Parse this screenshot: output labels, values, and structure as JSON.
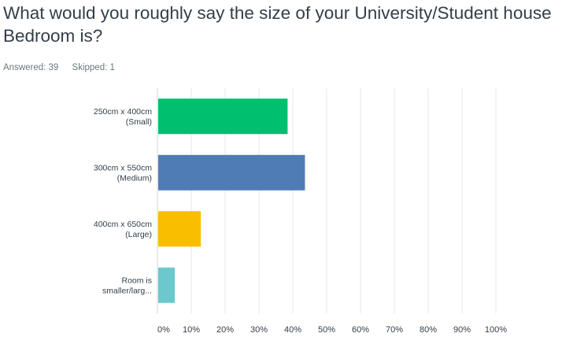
{
  "question": {
    "title": "What would you roughly say the size of your University/Student house Bedroom is?"
  },
  "stats": {
    "answered": "Answered: 39",
    "skipped": "Skipped: 1"
  },
  "chart_data": {
    "type": "bar",
    "orientation": "horizontal",
    "categories": [
      [
        "250cm x 400cm",
        "(Small)"
      ],
      [
        "300cm x 550cm",
        "(Medium)"
      ],
      [
        "400cm x 650cm",
        "(Large)"
      ],
      [
        "Room is",
        "smaller/larg..."
      ]
    ],
    "values": [
      38.46,
      43.59,
      12.82,
      5.13
    ],
    "colors": [
      "#00bf6f",
      "#507cb6",
      "#f9be00",
      "#6bc8cd"
    ],
    "xlim": [
      0,
      100
    ],
    "xticks": [
      "0%",
      "10%",
      "20%",
      "30%",
      "40%",
      "50%",
      "60%",
      "70%",
      "80%",
      "90%",
      "100%"
    ],
    "grid": true,
    "title": "",
    "xlabel": "",
    "ylabel": ""
  }
}
